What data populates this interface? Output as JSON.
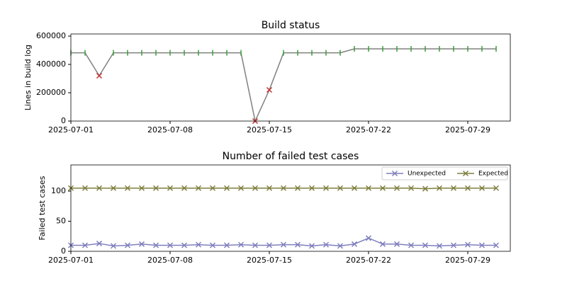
{
  "chart_data": [
    {
      "type": "line",
      "title": "Build status",
      "y_label": "Lines in build log",
      "x": [
        "2025-07-01",
        "2025-07-02",
        "2025-07-03",
        "2025-07-04",
        "2025-07-05",
        "2025-07-06",
        "2025-07-07",
        "2025-07-08",
        "2025-07-09",
        "2025-07-10",
        "2025-07-11",
        "2025-07-12",
        "2025-07-13",
        "2025-07-14",
        "2025-07-15",
        "2025-07-16",
        "2025-07-17",
        "2025-07-18",
        "2025-07-19",
        "2025-07-20",
        "2025-07-21",
        "2025-07-22",
        "2025-07-23",
        "2025-07-24",
        "2025-07-25",
        "2025-07-26",
        "2025-07-27",
        "2025-07-28",
        "2025-07-29",
        "2025-07-30",
        "2025-07-31"
      ],
      "values": [
        482000,
        482000,
        320000,
        482000,
        482000,
        482000,
        482000,
        482000,
        482000,
        482000,
        482000,
        482000,
        482000,
        0,
        220000,
        482000,
        482000,
        482000,
        482000,
        482000,
        510000,
        510000,
        510000,
        510000,
        510000,
        510000,
        510000,
        510000,
        510000,
        510000,
        510000
      ],
      "color": "#808080",
      "point_colors": [
        "#3a9e3a",
        "#3a9e3a",
        "#c03030",
        "#3a9e3a",
        "#3a9e3a",
        "#3a9e3a",
        "#3a9e3a",
        "#3a9e3a",
        "#3a9e3a",
        "#3a9e3a",
        "#3a9e3a",
        "#3a9e3a",
        "#3a9e3a",
        "#c03030",
        "#c03030",
        "#3a9e3a",
        "#3a9e3a",
        "#3a9e3a",
        "#3a9e3a",
        "#3a9e3a",
        "#3a9e3a",
        "#3a9e3a",
        "#3a9e3a",
        "#3a9e3a",
        "#3a9e3a",
        "#3a9e3a",
        "#3a9e3a",
        "#3a9e3a",
        "#3a9e3a",
        "#3a9e3a",
        "#3a9e3a"
      ],
      "markers": [
        "|",
        "|",
        "x",
        "|",
        "|",
        "|",
        "|",
        "|",
        "|",
        "|",
        "|",
        "|",
        "|",
        "x",
        "x",
        "|",
        "|",
        "|",
        "|",
        "|",
        "|",
        "|",
        "|",
        "|",
        "|",
        "|",
        "|",
        "|",
        "|",
        "|",
        "|"
      ],
      "xlim": [
        "2025-07-01",
        "2025-08-01"
      ],
      "xticks": [
        "2025-07-01",
        "2025-07-08",
        "2025-07-15",
        "2025-07-22",
        "2025-07-29"
      ],
      "ylim": [
        0,
        615000
      ],
      "yticks": [
        0,
        200000,
        400000,
        600000
      ]
    },
    {
      "type": "line",
      "title": "Number of failed test cases",
      "y_label": "Failed test cases",
      "x": [
        "2025-07-01",
        "2025-07-02",
        "2025-07-03",
        "2025-07-04",
        "2025-07-05",
        "2025-07-06",
        "2025-07-07",
        "2025-07-08",
        "2025-07-09",
        "2025-07-10",
        "2025-07-11",
        "2025-07-12",
        "2025-07-13",
        "2025-07-14",
        "2025-07-15",
        "2025-07-16",
        "2025-07-17",
        "2025-07-18",
        "2025-07-19",
        "2025-07-20",
        "2025-07-21",
        "2025-07-22",
        "2025-07-23",
        "2025-07-24",
        "2025-07-25",
        "2025-07-26",
        "2025-07-27",
        "2025-07-28",
        "2025-07-29",
        "2025-07-30",
        "2025-07-31"
      ],
      "series": [
        {
          "name": "Unexpected",
          "color": "#7f7fbf",
          "values": [
            10,
            10,
            13,
            9,
            10,
            12,
            10,
            10,
            10,
            11,
            10,
            10,
            11,
            10,
            10,
            11,
            11,
            9,
            11,
            9,
            12,
            22,
            12,
            12,
            10,
            10,
            9,
            10,
            11,
            10,
            10
          ]
        },
        {
          "name": "Expected",
          "color": "#7f7f3f",
          "values": [
            105,
            105,
            105,
            105,
            105,
            105,
            105,
            105,
            105,
            105,
            105,
            105,
            105,
            105,
            105,
            105,
            105,
            105,
            105,
            105,
            105,
            105,
            105,
            105,
            105,
            104,
            105,
            105,
            105,
            105,
            105
          ]
        }
      ],
      "marker": "x",
      "legend": "upper right",
      "xlim": [
        "2025-07-01",
        "2025-08-01"
      ],
      "xticks": [
        "2025-07-01",
        "2025-07-08",
        "2025-07-15",
        "2025-07-22",
        "2025-07-29"
      ],
      "ylim": [
        0,
        143.5
      ],
      "yticks": [
        0,
        50,
        100
      ]
    }
  ]
}
